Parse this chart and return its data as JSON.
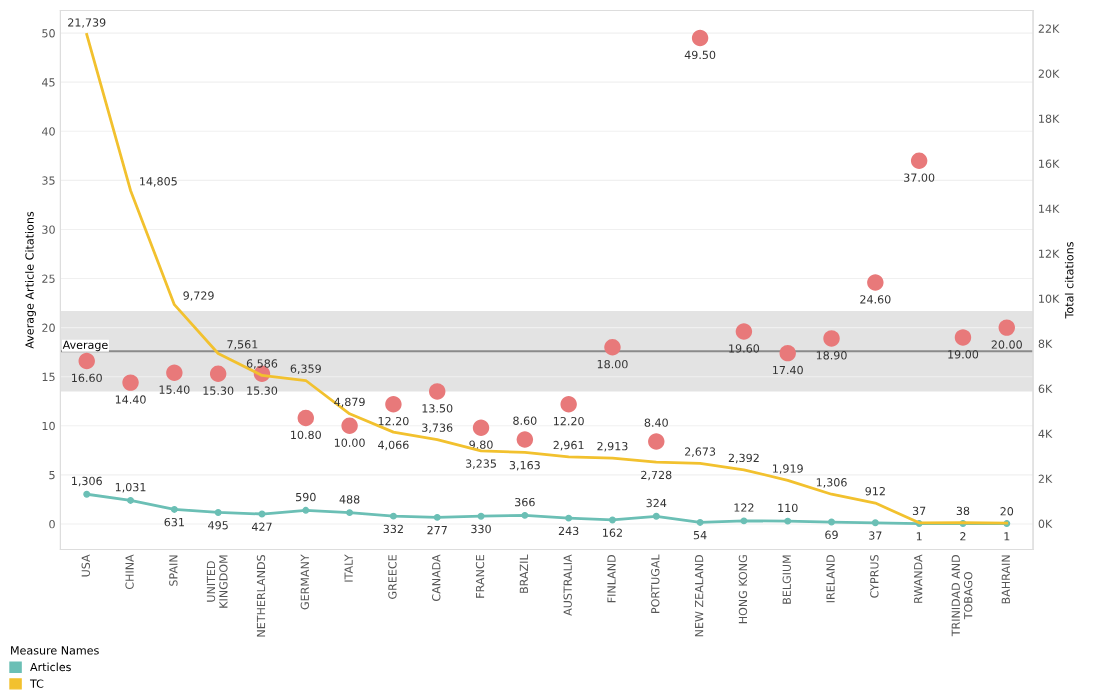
{
  "chart_data": {
    "type": "line",
    "ylabel": "Average Article Citations",
    "y2label": "Total citations",
    "legend_title": "Measure Names",
    "legend": "bottom left",
    "grid": "y",
    "data_labels": true,
    "categories": [
      "USA",
      "CHINA",
      "SPAIN",
      "UNITED\nKINGDOM",
      "NETHERLANDS",
      "GERMANY",
      "ITALY",
      "GREECE",
      "CANADA",
      "FRANCE",
      "BRAZIL",
      "AUSTRALIA",
      "FINLAND",
      "PORTUGAL",
      "NEW ZEALAND",
      "HONG KONG",
      "BELGIUM",
      "IRELAND",
      "CYPRUS",
      "RWANDA",
      "TRINIDAD AND\nTOBAGO",
      "BAHRAIN"
    ],
    "ylim": [
      -2.6,
      52.3
    ],
    "yticks": [
      0,
      5,
      10,
      15,
      20,
      25,
      30,
      35,
      40,
      45,
      50
    ],
    "y2lim": [
      -1150,
      22800
    ],
    "y2ticks": [
      {
        "value": 0,
        "label": "0K"
      },
      {
        "value": 2000,
        "label": "2K"
      },
      {
        "value": 4000,
        "label": "4K"
      },
      {
        "value": 6000,
        "label": "6K"
      },
      {
        "value": 8000,
        "label": "8K"
      },
      {
        "value": 10000,
        "label": "10K"
      },
      {
        "value": 12000,
        "label": "12K"
      },
      {
        "value": 14000,
        "label": "14K"
      },
      {
        "value": 16000,
        "label": "16K"
      },
      {
        "value": 18000,
        "label": "18K"
      },
      {
        "value": 20000,
        "label": "20K"
      },
      {
        "value": 22000,
        "label": "22K"
      }
    ],
    "bands": [
      {
        "axis": "y",
        "from": 13.5,
        "to": 21.7,
        "color": "#e3e3e3"
      }
    ],
    "ref_lines": [
      {
        "axis": "y",
        "value": 17.6,
        "label": "Average",
        "color": "#8a8a8a"
      }
    ],
    "series": [
      {
        "type": "scatter",
        "color": "#e8797a",
        "marker": "circle",
        "value_labels": [
          "16.60",
          "14.40",
          "15.40",
          "15.30",
          "15.30",
          "10.80",
          "10.00",
          "12.20",
          "13.50",
          "9.80",
          "8.60",
          "12.20",
          "18.00",
          "8.40",
          "49.50",
          "19.60",
          "17.40",
          "18.90",
          "24.60",
          "37.00",
          "19.00",
          "20.00"
        ],
        "values": [
          16.6,
          14.4,
          15.4,
          15.3,
          15.3,
          10.8,
          10.0,
          12.2,
          13.5,
          9.8,
          8.6,
          12.2,
          18.0,
          8.4,
          49.5,
          19.6,
          17.4,
          18.9,
          24.6,
          37.0,
          19.0,
          20.0
        ]
      },
      {
        "name": "Articles",
        "axis": "y2",
        "color": "#6bbfb5",
        "marker": "circle",
        "value_labels": [
          "1,306",
          "1,031",
          "631",
          "495",
          "427",
          "590",
          "488",
          "332",
          "277",
          "330",
          "366",
          "243",
          "162",
          "324",
          "54",
          "122",
          "110",
          "69",
          "37",
          "1",
          "2",
          "1"
        ],
        "values": [
          1306,
          1031,
          631,
          495,
          427,
          590,
          488,
          332,
          277,
          330,
          366,
          243,
          162,
          324,
          54,
          122,
          110,
          69,
          37,
          1,
          2,
          1
        ]
      },
      {
        "name": "TC",
        "axis": "y2",
        "color": "#f2c12e",
        "marker": "none",
        "value_labels": [
          "21,739",
          "14,805",
          "9,729",
          "7,561",
          "6,586",
          "6,359",
          "4,879",
          "4,066",
          "3,736",
          "3,235",
          "3,163",
          "2,961",
          "2,913",
          "2,728",
          "2,673",
          "2,392",
          "1,919",
          "1,306",
          "912",
          "37",
          "38",
          "20"
        ],
        "values": [
          21739,
          14805,
          9729,
          7561,
          6586,
          6359,
          4879,
          4066,
          3736,
          3235,
          3163,
          2961,
          2913,
          2728,
          2673,
          2392,
          1919,
          1306,
          912,
          37,
          38,
          20
        ]
      }
    ]
  }
}
